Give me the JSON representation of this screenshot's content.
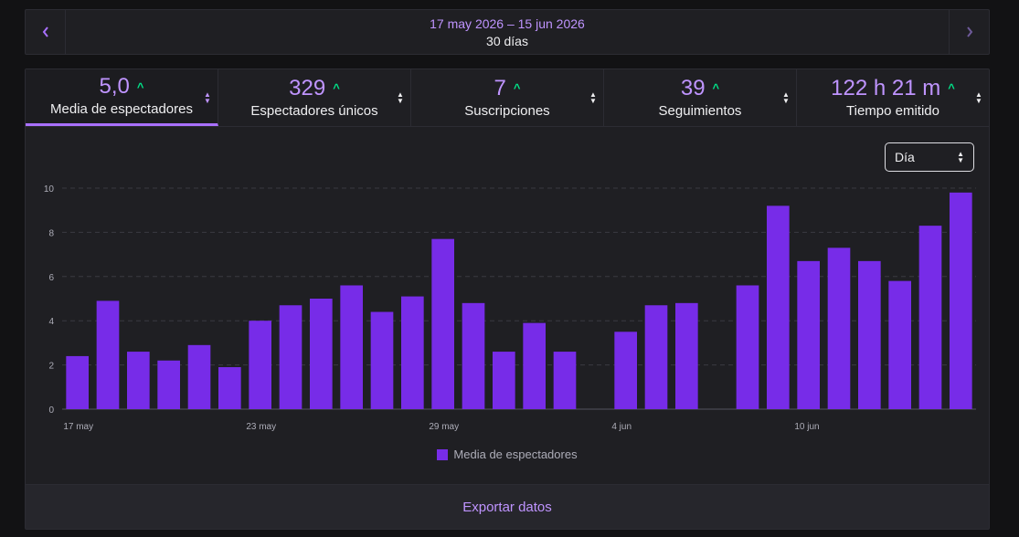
{
  "date_bar": {
    "prev_icon": "chevron-left-icon",
    "next_icon": "chevron-right-icon",
    "range": "17 may 2026 – 15 jun 2026",
    "days": "30 días"
  },
  "tabs": [
    {
      "value": "5,0",
      "label": "Media de espectadores",
      "active": true
    },
    {
      "value": "329",
      "label": "Espectadores únicos",
      "active": false
    },
    {
      "value": "7",
      "label": "Suscripciones",
      "active": false
    },
    {
      "value": "39",
      "label": "Seguimientos",
      "active": false
    },
    {
      "value": "122 h 21 m",
      "label": "Tiempo emitido",
      "active": false
    }
  ],
  "granularity_select": {
    "value": "Día"
  },
  "chart_data": {
    "type": "bar",
    "categories": [
      "17 may",
      "18 may",
      "19 may",
      "20 may",
      "21 may",
      "22 may",
      "23 may",
      "24 may",
      "25 may",
      "26 may",
      "27 may",
      "28 may",
      "29 may",
      "30 may",
      "31 may",
      "1 jun",
      "2 jun",
      "3 jun",
      "4 jun",
      "5 jun",
      "6 jun",
      "7 jun",
      "8 jun",
      "9 jun",
      "10 jun",
      "11 jun",
      "12 jun",
      "13 jun",
      "14 jun",
      "15 jun"
    ],
    "series": [
      {
        "name": "Media de espectadores",
        "values": [
          2.4,
          4.9,
          2.6,
          2.2,
          2.9,
          1.9,
          4.0,
          4.7,
          5.0,
          5.6,
          4.4,
          5.1,
          7.7,
          4.8,
          2.6,
          3.9,
          2.6,
          null,
          3.5,
          4.7,
          4.8,
          null,
          5.6,
          9.2,
          6.7,
          7.3,
          6.7,
          5.8,
          8.3,
          9.8
        ]
      }
    ],
    "x_tick_labels": [
      "17 may",
      "23 may",
      "29 may",
      "4 jun",
      "10 jun"
    ],
    "y_ticks": [
      "0",
      "2",
      "4",
      "6",
      "8",
      "10"
    ],
    "ylim": [
      0,
      10
    ],
    "grid": true,
    "legend_position": "bottom",
    "color": "#772ce8"
  },
  "legend": {
    "label": "Media de espectadores"
  },
  "footer": {
    "export_label": "Exportar datos"
  }
}
